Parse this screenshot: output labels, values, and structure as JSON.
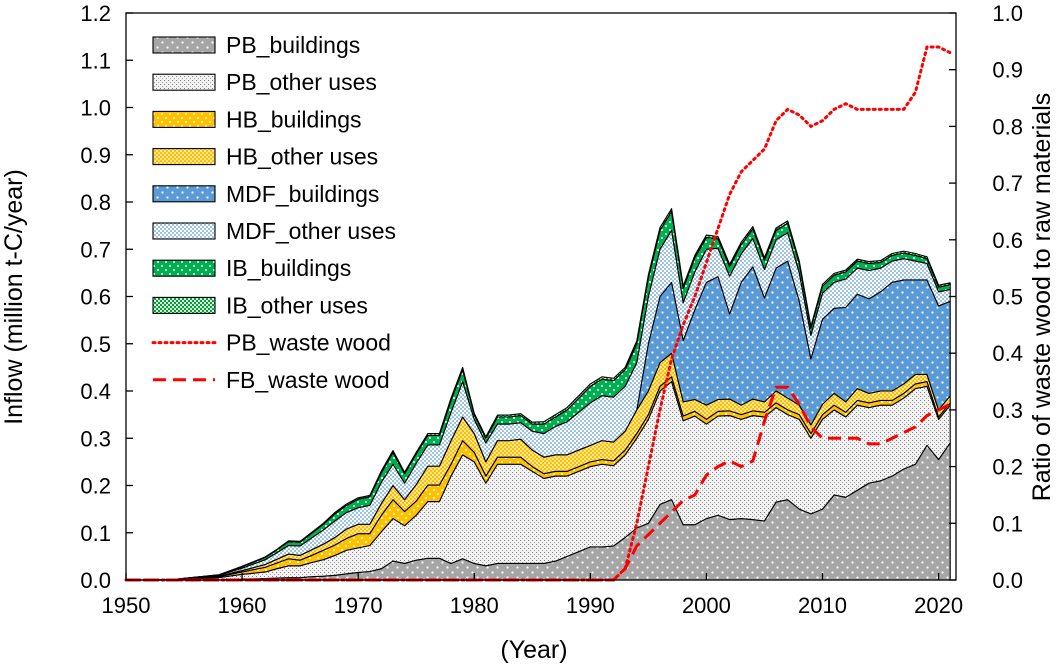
{
  "chart_data": {
    "type": "area",
    "title": "",
    "xlabel": "(Year)",
    "ylabel": "Inflow (million t-C/year)",
    "y2label": "Ratio of waste wood to raw materials",
    "xlim": [
      1950,
      2021.5
    ],
    "ylim": [
      0,
      1.2
    ],
    "y2lim": [
      0,
      1.0
    ],
    "x_ticks": [
      "1950",
      "1960",
      "1970",
      "1980",
      "1990",
      "2000",
      "2010",
      "2020"
    ],
    "y_ticks": [
      "0.0",
      "0.1",
      "0.2",
      "0.3",
      "0.4",
      "0.5",
      "0.6",
      "0.7",
      "0.8",
      "0.9",
      "1.0",
      "1.1",
      "1.2"
    ],
    "y2_ticks": [
      "0.0",
      "0.1",
      "0.2",
      "0.3",
      "0.4",
      "0.5",
      "0.6",
      "0.7",
      "0.8",
      "0.9",
      "1.0"
    ],
    "legend_position": "top-left",
    "legend": [
      {
        "label": "PB_buildings",
        "kind": "area",
        "color": "#a6a6a6",
        "pattern": "dots-white"
      },
      {
        "label": "PB_other uses",
        "kind": "area",
        "color": "#e6e6e6",
        "pattern": "dots-gray"
      },
      {
        "label": "HB_buildings",
        "kind": "area",
        "color": "#ffc000",
        "pattern": "dots-white"
      },
      {
        "label": "HB_other uses",
        "kind": "area",
        "color": "#ffd966",
        "pattern": "checker"
      },
      {
        "label": "MDF_buildings",
        "kind": "area",
        "color": "#5b9bd5",
        "pattern": "dots-white"
      },
      {
        "label": "MDF_other uses",
        "kind": "area",
        "color": "#bdd7ee",
        "pattern": "checker-blue"
      },
      {
        "label": "IB_buildings",
        "kind": "area",
        "color": "#00b050",
        "pattern": "dots-white"
      },
      {
        "label": "IB_other uses",
        "kind": "area",
        "color": "#a9d08e",
        "pattern": "checker-green"
      },
      {
        "label": "PB_waste wood",
        "kind": "line",
        "color": "#ff0000",
        "dash": "dotted"
      },
      {
        "label": "FB_waste wood",
        "kind": "line",
        "color": "#ff0000",
        "dash": "dashed"
      }
    ],
    "x": [
      1950,
      1952,
      1954,
      1956,
      1958,
      1960,
      1962,
      1963,
      1964,
      1965,
      1966,
      1967,
      1968,
      1969,
      1970,
      1971,
      1972,
      1973,
      1974,
      1975,
      1976,
      1977,
      1978,
      1979,
      1980,
      1981,
      1982,
      1983,
      1984,
      1985,
      1986,
      1987,
      1988,
      1989,
      1990,
      1991,
      1992,
      1993,
      1994,
      1995,
      1996,
      1997,
      1998,
      1999,
      2000,
      2001,
      2002,
      2003,
      2004,
      2005,
      2006,
      2007,
      2008,
      2009,
      2010,
      2011,
      2012,
      2013,
      2014,
      2015,
      2016,
      2017,
      2018,
      2019,
      2020,
      2021
    ],
    "series": [
      {
        "name": "PB_buildings",
        "values": [
          0,
          0,
          0,
          0,
          0,
          0.002,
          0.003,
          0.004,
          0.005,
          0.005,
          0.007,
          0.008,
          0.01,
          0.013,
          0.016,
          0.018,
          0.024,
          0.04,
          0.035,
          0.042,
          0.046,
          0.046,
          0.035,
          0.045,
          0.035,
          0.03,
          0.035,
          0.035,
          0.035,
          0.035,
          0.035,
          0.04,
          0.05,
          0.06,
          0.07,
          0.07,
          0.072,
          0.09,
          0.11,
          0.12,
          0.16,
          0.17,
          0.117,
          0.117,
          0.13,
          0.137,
          0.128,
          0.13,
          0.128,
          0.125,
          0.165,
          0.17,
          0.15,
          0.14,
          0.15,
          0.18,
          0.175,
          0.19,
          0.205,
          0.21,
          0.22,
          0.235,
          0.245,
          0.285,
          0.255,
          0.29
        ]
      },
      {
        "name": "PB_other uses",
        "values": [
          0,
          0,
          0.001,
          0.003,
          0.005,
          0.01,
          0.014,
          0.02,
          0.025,
          0.025,
          0.03,
          0.035,
          0.042,
          0.05,
          0.052,
          0.055,
          0.078,
          0.09,
          0.08,
          0.095,
          0.12,
          0.12,
          0.185,
          0.22,
          0.215,
          0.175,
          0.21,
          0.21,
          0.21,
          0.195,
          0.18,
          0.18,
          0.17,
          0.17,
          0.17,
          0.175,
          0.17,
          0.175,
          0.19,
          0.22,
          0.24,
          0.25,
          0.22,
          0.23,
          0.2,
          0.21,
          0.22,
          0.21,
          0.22,
          0.22,
          0.2,
          0.18,
          0.19,
          0.16,
          0.19,
          0.18,
          0.17,
          0.18,
          0.16,
          0.16,
          0.15,
          0.15,
          0.16,
          0.125,
          0.085,
          0.08
        ]
      },
      {
        "name": "HB_buildings",
        "values": [
          0,
          0,
          0,
          0.001,
          0.002,
          0.005,
          0.01,
          0.012,
          0.015,
          0.012,
          0.015,
          0.02,
          0.022,
          0.025,
          0.03,
          0.025,
          0.035,
          0.04,
          0.03,
          0.03,
          0.035,
          0.035,
          0.025,
          0.03,
          0.02,
          0.015,
          0.015,
          0.015,
          0.015,
          0.01,
          0.01,
          0.01,
          0.01,
          0.01,
          0.01,
          0.01,
          0.01,
          0.01,
          0.01,
          0.01,
          0.01,
          0.01,
          0.01,
          0.01,
          0.01,
          0.01,
          0.01,
          0.01,
          0.01,
          0.01,
          0.01,
          0.01,
          0.01,
          0.01,
          0.01,
          0.01,
          0.01,
          0.01,
          0.01,
          0.01,
          0.01,
          0.01,
          0.01,
          0.01,
          0.005,
          0.005
        ]
      },
      {
        "name": "HB_other uses",
        "values": [
          0,
          0,
          0,
          0.001,
          0.001,
          0.003,
          0.006,
          0.008,
          0.01,
          0.01,
          0.012,
          0.013,
          0.016,
          0.02,
          0.02,
          0.02,
          0.025,
          0.03,
          0.025,
          0.035,
          0.04,
          0.04,
          0.05,
          0.05,
          0.04,
          0.03,
          0.035,
          0.035,
          0.038,
          0.035,
          0.035,
          0.035,
          0.035,
          0.035,
          0.035,
          0.04,
          0.04,
          0.04,
          0.05,
          0.05,
          0.05,
          0.05,
          0.03,
          0.025,
          0.03,
          0.025,
          0.025,
          0.02,
          0.025,
          0.022,
          0.025,
          0.025,
          0.02,
          0.018,
          0.022,
          0.025,
          0.022,
          0.025,
          0.02,
          0.02,
          0.02,
          0.02,
          0.02,
          0.015,
          0.015,
          0.015
        ]
      },
      {
        "name": "MDF_buildings",
        "values": [
          0,
          0,
          0,
          0,
          0,
          0,
          0,
          0,
          0,
          0,
          0,
          0,
          0,
          0,
          0,
          0,
          0,
          0,
          0,
          0,
          0,
          0,
          0,
          0,
          0,
          0,
          0,
          0,
          0,
          0,
          0,
          0,
          0,
          0,
          0,
          0,
          0,
          0,
          0,
          0.1,
          0.14,
          0.15,
          0.13,
          0.19,
          0.26,
          0.26,
          0.18,
          0.26,
          0.28,
          0.22,
          0.26,
          0.29,
          0.22,
          0.14,
          0.18,
          0.18,
          0.2,
          0.2,
          0.2,
          0.21,
          0.23,
          0.22,
          0.2,
          0.2,
          0.22,
          0.2
        ]
      },
      {
        "name": "MDF_other uses",
        "values": [
          0,
          0,
          0,
          0.001,
          0.002,
          0.005,
          0.01,
          0.014,
          0.018,
          0.02,
          0.025,
          0.03,
          0.035,
          0.035,
          0.035,
          0.04,
          0.045,
          0.045,
          0.035,
          0.045,
          0.045,
          0.045,
          0.06,
          0.075,
          0.03,
          0.04,
          0.035,
          0.035,
          0.035,
          0.04,
          0.05,
          0.06,
          0.07,
          0.08,
          0.09,
          0.095,
          0.095,
          0.095,
          0.1,
          0.1,
          0.1,
          0.11,
          0.08,
          0.08,
          0.07,
          0.06,
          0.08,
          0.06,
          0.06,
          0.06,
          0.06,
          0.06,
          0.06,
          0.05,
          0.055,
          0.055,
          0.06,
          0.055,
          0.06,
          0.05,
          0.045,
          0.045,
          0.04,
          0.035,
          0.03,
          0.025
        ]
      },
      {
        "name": "IB_buildings",
        "values": [
          0,
          0,
          0,
          0,
          0.001,
          0.003,
          0.005,
          0.006,
          0.008,
          0.008,
          0.01,
          0.012,
          0.015,
          0.015,
          0.018,
          0.018,
          0.02,
          0.025,
          0.02,
          0.02,
          0.02,
          0.02,
          0.025,
          0.025,
          0.01,
          0.01,
          0.015,
          0.015,
          0.015,
          0.015,
          0.02,
          0.02,
          0.025,
          0.03,
          0.035,
          0.035,
          0.035,
          0.035,
          0.04,
          0.04,
          0.04,
          0.04,
          0.03,
          0.03,
          0.025,
          0.02,
          0.02,
          0.02,
          0.02,
          0.02,
          0.02,
          0.02,
          0.02,
          0.015,
          0.015,
          0.015,
          0.015,
          0.015,
          0.015,
          0.012,
          0.012,
          0.012,
          0.012,
          0.01,
          0.01,
          0.01
        ]
      },
      {
        "name": "IB_other uses",
        "values": [
          0,
          0,
          0,
          0,
          0,
          0.001,
          0.001,
          0.001,
          0.002,
          0.002,
          0.002,
          0.002,
          0.003,
          0.003,
          0.003,
          0.003,
          0.004,
          0.004,
          0.003,
          0.003,
          0.004,
          0.004,
          0.005,
          0.005,
          0.003,
          0.003,
          0.004,
          0.004,
          0.004,
          0.004,
          0.005,
          0.005,
          0.005,
          0.005,
          0.005,
          0.005,
          0.005,
          0.005,
          0.006,
          0.006,
          0.006,
          0.006,
          0.005,
          0.005,
          0.005,
          0.005,
          0.005,
          0.005,
          0.005,
          0.005,
          0.005,
          0.005,
          0.005,
          0.004,
          0.004,
          0.004,
          0.004,
          0.004,
          0.004,
          0.004,
          0.004,
          0.004,
          0.004,
          0.004,
          0.004,
          0.004
        ]
      }
    ],
    "lines": [
      {
        "name": "PB_waste wood",
        "axis": "right",
        "x": [
          1950,
          1992,
          1993,
          1994,
          1995,
          1996,
          1997,
          1998,
          1999,
          2000,
          2001,
          2002,
          2003,
          2004,
          2005,
          2006,
          2007,
          2008,
          2009,
          2010,
          2011,
          2012,
          2013,
          2014,
          2015,
          2016,
          2017,
          2018,
          2019,
          2020,
          2021
        ],
        "values": [
          0,
          0,
          0.02,
          0.1,
          0.2,
          0.3,
          0.39,
          0.45,
          0.5,
          0.56,
          0.62,
          0.68,
          0.72,
          0.74,
          0.76,
          0.81,
          0.83,
          0.82,
          0.8,
          0.81,
          0.83,
          0.84,
          0.83,
          0.83,
          0.83,
          0.83,
          0.83,
          0.86,
          0.94,
          0.94,
          0.93
        ]
      },
      {
        "name": "FB_waste wood",
        "axis": "right",
        "x": [
          1950,
          1992,
          1993,
          1994,
          1995,
          1996,
          1997,
          1998,
          1999,
          2000,
          2001,
          2002,
          2003,
          2004,
          2005,
          2006,
          2007,
          2008,
          2009,
          2010,
          2011,
          2012,
          2013,
          2014,
          2015,
          2016,
          2017,
          2018,
          2019,
          2020,
          2021
        ],
        "values": [
          0,
          0,
          0.02,
          0.06,
          0.08,
          0.1,
          0.12,
          0.14,
          0.15,
          0.185,
          0.2,
          0.21,
          0.2,
          0.21,
          0.28,
          0.34,
          0.34,
          0.31,
          0.27,
          0.25,
          0.25,
          0.25,
          0.25,
          0.24,
          0.24,
          0.25,
          0.26,
          0.27,
          0.29,
          0.3,
          0.31
        ]
      }
    ]
  }
}
